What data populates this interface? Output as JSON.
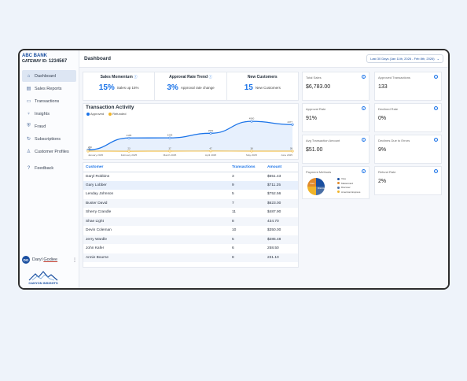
{
  "brand": {
    "name": "ABC BANK",
    "gateway_label": "GATEWAY ID:",
    "gateway_id": "1234567"
  },
  "nav": [
    {
      "label": "Dashboard",
      "icon": "home-icon",
      "active": true
    },
    {
      "label": "Sales Reports",
      "icon": "chart-icon"
    },
    {
      "label": "Transactions",
      "icon": "card-icon"
    },
    {
      "label": "Insights",
      "icon": "bulb-icon"
    },
    {
      "label": "Fraud",
      "icon": "shield-icon"
    },
    {
      "label": "Subscriptions",
      "icon": "refresh-icon"
    },
    {
      "label": "Customer Profiles",
      "icon": "user-icon"
    },
    {
      "label": "Feedback",
      "icon": "question-icon"
    }
  ],
  "user": {
    "initials": "DG",
    "first": "Daryl",
    "last": "Godiee"
  },
  "logo_text": "CANYON INSIGHTS",
  "header": {
    "title": "Dashboard",
    "date_range": "Last 30 Days (Jan 11th, 2026 - Feb 8th, 2026)"
  },
  "stats": [
    {
      "title": "Sales Momentum",
      "value": "15%",
      "sub": "Sales up 15%"
    },
    {
      "title": "Approval Rate Trend",
      "value": "3%",
      "sub": "Approval rate change"
    },
    {
      "title": "New Customers",
      "value": "15",
      "sub": "New Customers"
    }
  ],
  "chart_data": {
    "type": "line",
    "title": "Transaction Activity",
    "categories": [
      "January 2025",
      "February 2025",
      "March 2025",
      "April 2025",
      "May 2025",
      "June 2025"
    ],
    "series": [
      {
        "name": "Approved",
        "color": "#1a73e8",
        "values": [
          250,
          2185,
          2209,
          2952,
          4900,
          4377
        ]
      },
      {
        "name": "Refunded",
        "color": "#f0b429",
        "values": [
          36,
          23,
          37,
          47,
          38,
          38
        ]
      }
    ],
    "ylim": [
      0,
      5500
    ]
  },
  "table": {
    "headers": [
      "Customer",
      "Transactions",
      "Amount"
    ],
    "rows": [
      [
        "Daryl Robbins",
        "3",
        "$551.43"
      ],
      [
        "Gary Lobber",
        "9",
        "$711.25"
      ],
      [
        "Lenday Johnson",
        "5",
        "$752.56"
      ],
      [
        "Buster David",
        "7",
        "$623.00"
      ],
      [
        "Sherry Crandle",
        "11",
        "$487.90"
      ],
      [
        "Shae Light",
        "8",
        "434.70"
      ],
      [
        "Devin Coleman",
        "10",
        "$350.00"
      ],
      [
        "Jerry Wardle",
        "5",
        "$285.48"
      ],
      [
        "John Kafer",
        "6",
        "258.50"
      ],
      [
        "Annie Bourne",
        "8",
        "231.10"
      ]
    ]
  },
  "cards": [
    {
      "label": "Total Sales",
      "value": "$6,783.00"
    },
    {
      "label": "Approved Transactions",
      "value": "133"
    },
    {
      "label": "Approval Rate",
      "value": "91%"
    },
    {
      "label": "Declined Rate",
      "value": "0%"
    },
    {
      "label": "Avg Transaction Amount",
      "value": "$51.00"
    },
    {
      "label": "Declines Due to Errors",
      "value": "9%"
    },
    {
      "label": "Payment Methods",
      "value": ""
    },
    {
      "label": "Refund Rate",
      "value": "2%"
    }
  ],
  "payment_methods": [
    {
      "name": "Visa",
      "color": "#1a4fa0"
    },
    {
      "name": "Mastercard",
      "color": "#e08a2a"
    },
    {
      "name": "Discover",
      "color": "#4a6fa5"
    },
    {
      "name": "American Express",
      "color": "#f0b429"
    }
  ],
  "pie_labels": [
    "Visa",
    "Discover"
  ]
}
